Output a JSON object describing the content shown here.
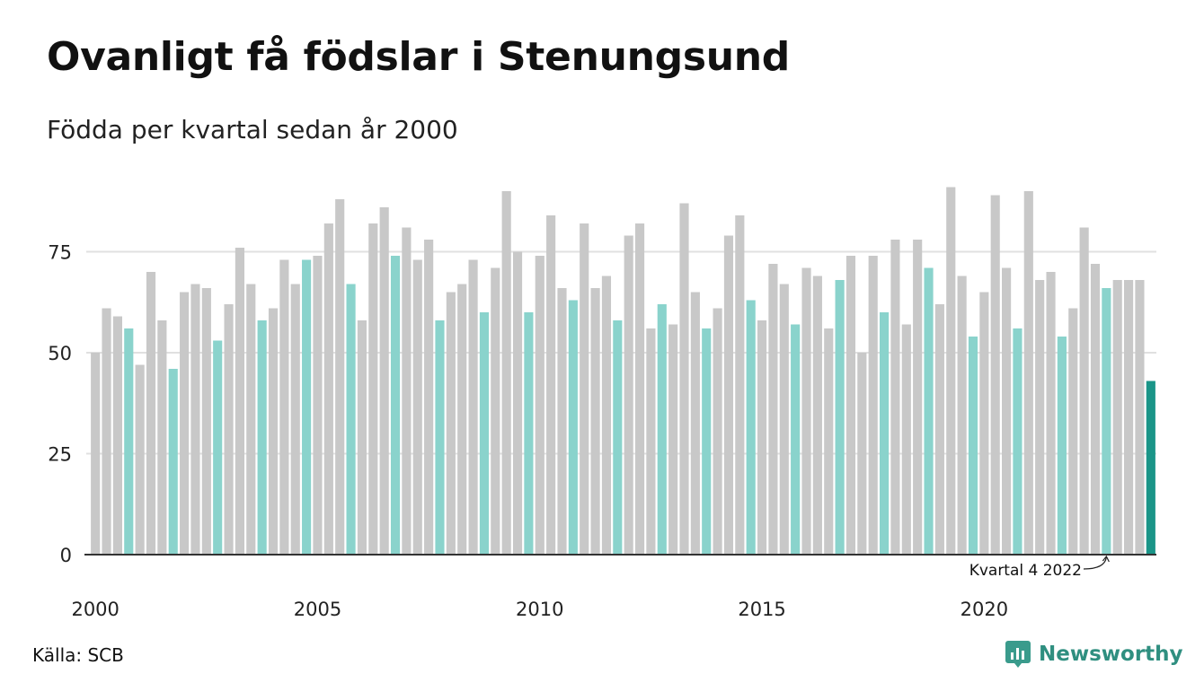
{
  "title": "Ovanligt få födslar i Stenungsund",
  "subtitle": "Födda per kvartal sedan år 2000",
  "source": "Källa: SCB",
  "brand": {
    "name": "Newsworthy",
    "icon": "newsworthy-logo-icon"
  },
  "colors": {
    "regular": "#c8c8c8",
    "quarter4": "#8ad3cc",
    "highlight": "#1a9588",
    "grid": "#e0e0e0",
    "axis": "#333333"
  },
  "chart_data": {
    "type": "bar",
    "ylim": [
      0,
      95
    ],
    "yticks": [
      0,
      25,
      50,
      75
    ],
    "xticks": [
      "2000",
      "2005",
      "2010",
      "2015",
      "2020"
    ],
    "grid": true,
    "annotation": "Kvartal 4 2022",
    "series": [
      {
        "values": [
          50,
          61,
          59,
          56,
          47,
          70,
          58,
          46,
          65,
          67,
          66,
          53,
          62,
          76,
          67,
          58,
          61,
          73,
          67,
          73,
          74,
          82,
          88,
          67,
          58,
          82,
          86,
          74,
          81,
          73,
          78,
          58,
          65,
          67,
          73,
          60,
          71,
          90,
          75,
          60,
          74,
          84,
          66,
          63,
          82,
          66,
          69,
          58,
          79,
          82,
          56,
          62,
          57,
          87,
          65,
          56,
          61,
          79,
          84,
          63,
          58,
          72,
          67,
          57,
          71,
          69,
          56,
          68,
          74,
          50,
          74,
          60,
          78,
          57,
          78,
          71,
          62,
          91,
          69,
          54,
          65,
          89,
          71,
          56,
          90,
          68,
          70,
          54,
          61,
          81,
          72,
          66,
          68,
          68,
          68,
          43
        ]
      }
    ]
  }
}
